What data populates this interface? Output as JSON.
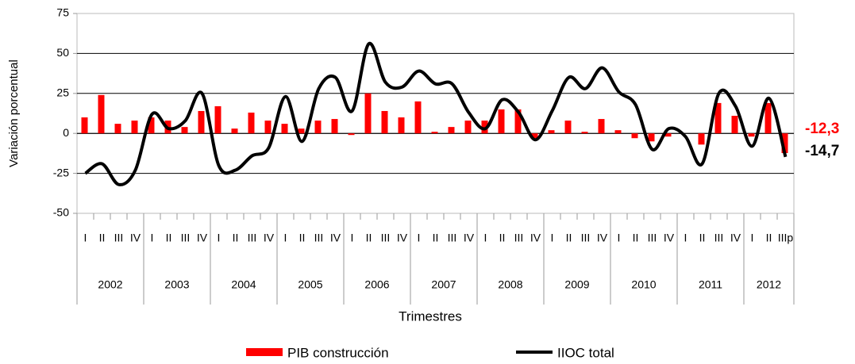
{
  "chart_data": {
    "type": "bar-line",
    "x_label": "Trimestres",
    "y_label": "Variación porcentual",
    "categories": [
      "I",
      "II",
      "III",
      "IV",
      "I",
      "II",
      "III",
      "IV",
      "I",
      "II",
      "III",
      "IV",
      "I",
      "II",
      "III",
      "IV",
      "I",
      "II",
      "III",
      "IV",
      "I",
      "II",
      "III",
      "IV",
      "I",
      "II",
      "III",
      "IV",
      "I",
      "II",
      "III",
      "IV",
      "I",
      "II",
      "III",
      "IV",
      "I",
      "II",
      "III",
      "IV",
      "I",
      "II",
      "IIIp"
    ],
    "years": [
      "2002",
      "2003",
      "2004",
      "2005",
      "2006",
      "2007",
      "2008",
      "2009",
      "2010",
      "2011",
      "2012"
    ],
    "series": [
      {
        "name": "PIB construcción",
        "type": "bar",
        "color": "#ff0000",
        "values": [
          10,
          24,
          6,
          8,
          10,
          8,
          4,
          14,
          17,
          3,
          13,
          8,
          6,
          3,
          8,
          9,
          -1,
          25,
          14,
          10,
          20,
          1,
          4,
          8,
          8,
          15,
          15,
          -3,
          2,
          8,
          1,
          9,
          2,
          -3,
          -5,
          -2,
          0,
          -7,
          19,
          11,
          -2,
          19,
          -12.3
        ],
        "value_labels": [
          null,
          null,
          null,
          null,
          null,
          null,
          null,
          null,
          null,
          null,
          null,
          null,
          null,
          null,
          null,
          null,
          null,
          null,
          null,
          null,
          null,
          null,
          null,
          null,
          null,
          null,
          null,
          null,
          null,
          null,
          null,
          null,
          null,
          null,
          null,
          null,
          null,
          null,
          null,
          null,
          null,
          null,
          "-12,3"
        ]
      },
      {
        "name": "IIOC total",
        "type": "line",
        "color": "#000000",
        "values": [
          -25,
          -19,
          -32,
          -23,
          12,
          3,
          8,
          25,
          -20,
          -23,
          -14,
          -9,
          23,
          -5,
          28,
          35,
          14,
          56,
          32,
          29,
          39,
          31,
          31,
          13,
          3,
          21,
          13,
          -4,
          14,
          35,
          28,
          41,
          26,
          18,
          -10,
          3,
          -2,
          -19,
          25,
          17,
          -8,
          22,
          -14.7
        ],
        "value_labels": [
          null,
          null,
          null,
          null,
          null,
          null,
          null,
          null,
          null,
          null,
          null,
          null,
          null,
          null,
          null,
          null,
          null,
          null,
          null,
          null,
          null,
          null,
          null,
          null,
          null,
          null,
          null,
          null,
          null,
          null,
          null,
          null,
          null,
          null,
          null,
          null,
          null,
          null,
          null,
          null,
          null,
          null,
          "-14,7"
        ]
      }
    ],
    "ylim": [
      -50,
      75
    ],
    "yticks": [
      -50,
      -25,
      0,
      25,
      50,
      75
    ],
    "grid": true,
    "legend": "bottom"
  }
}
